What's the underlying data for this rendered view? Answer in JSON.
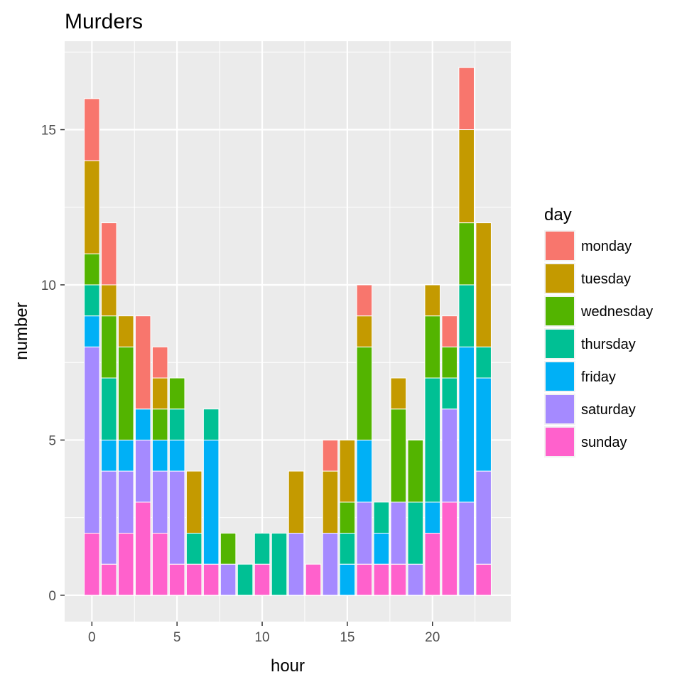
{
  "chart_data": {
    "type": "bar",
    "stacked": true,
    "title": "Murders",
    "xlabel": "hour",
    "ylabel": "number",
    "x": [
      0,
      1,
      2,
      3,
      4,
      5,
      6,
      7,
      8,
      9,
      10,
      11,
      12,
      13,
      14,
      15,
      16,
      17,
      18,
      19,
      20,
      21,
      22,
      23
    ],
    "xticks": [
      0,
      5,
      10,
      15,
      20
    ],
    "yticks": [
      0,
      5,
      10,
      15
    ],
    "xlim": [
      -1.6,
      24.6
    ],
    "ylim": [
      -0.85,
      17.85
    ],
    "grid": true,
    "legend": {
      "title": "day",
      "position": "right"
    },
    "series": [
      {
        "name": "sunday",
        "color": "#FF61CC",
        "values": [
          2,
          1,
          2,
          3,
          2,
          1,
          1,
          1,
          0,
          0,
          1,
          0,
          0,
          1,
          0,
          0,
          1,
          1,
          1,
          0,
          2,
          3,
          0,
          1
        ]
      },
      {
        "name": "saturday",
        "color": "#A58AFF",
        "values": [
          6,
          3,
          2,
          2,
          2,
          3,
          0,
          0,
          1,
          0,
          0,
          0,
          2,
          0,
          2,
          0,
          2,
          0,
          2,
          1,
          0,
          3,
          3,
          3
        ]
      },
      {
        "name": "friday",
        "color": "#00B0F6",
        "values": [
          1,
          1,
          1,
          1,
          1,
          1,
          0,
          4,
          0,
          0,
          0,
          0,
          0,
          0,
          0,
          1,
          2,
          1,
          0,
          0,
          1,
          0,
          5,
          3
        ]
      },
      {
        "name": "thursday",
        "color": "#00C094",
        "values": [
          1,
          2,
          0,
          0,
          0,
          1,
          1,
          1,
          0,
          1,
          1,
          2,
          0,
          0,
          0,
          1,
          0,
          1,
          0,
          2,
          4,
          1,
          2,
          1
        ]
      },
      {
        "name": "wednesday",
        "color": "#53B400",
        "values": [
          1,
          2,
          3,
          0,
          1,
          1,
          0,
          0,
          1,
          0,
          0,
          0,
          0,
          0,
          0,
          1,
          3,
          0,
          3,
          2,
          2,
          1,
          2,
          0
        ]
      },
      {
        "name": "tuesday",
        "color": "#C49A00",
        "values": [
          3,
          1,
          1,
          0,
          1,
          0,
          2,
          0,
          0,
          0,
          0,
          0,
          2,
          0,
          2,
          2,
          1,
          0,
          1,
          0,
          1,
          0,
          3,
          4
        ]
      },
      {
        "name": "monday",
        "color": "#F8766D",
        "values": [
          2,
          2,
          0,
          3,
          1,
          0,
          0,
          0,
          0,
          0,
          0,
          0,
          0,
          0,
          1,
          0,
          1,
          0,
          0,
          0,
          0,
          1,
          2,
          0
        ]
      }
    ],
    "legend_order": [
      "monday",
      "tuesday",
      "wednesday",
      "thursday",
      "friday",
      "saturday",
      "sunday"
    ]
  }
}
